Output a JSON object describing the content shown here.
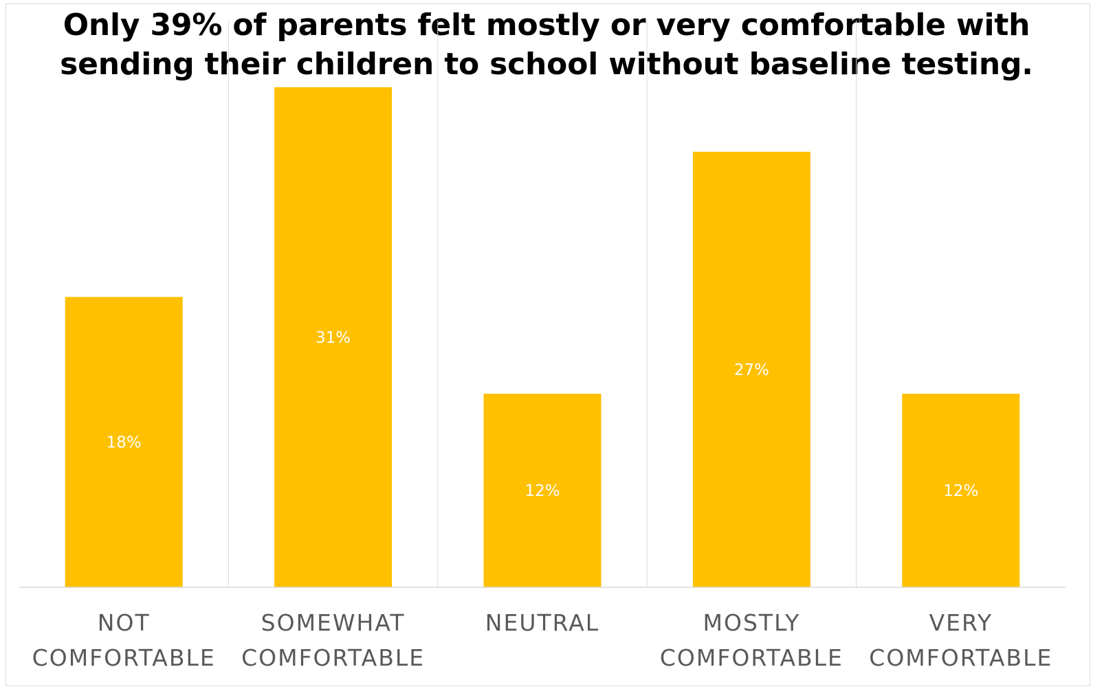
{
  "chart_data": {
    "type": "bar",
    "title": "Only 39% of parents felt mostly or very comfortable with sending their children to school without baseline testing.",
    "categories": [
      [
        "NOT",
        "COMFORTABLE"
      ],
      [
        "SOMEWHAT",
        "COMFORTABLE"
      ],
      [
        "NEUTRAL"
      ],
      [
        "MOSTLY",
        "COMFORTABLE"
      ],
      [
        "VERY",
        "COMFORTABLE"
      ]
    ],
    "values": [
      18,
      31,
      12,
      27,
      12
    ],
    "data_labels": [
      "18%",
      "31%",
      "12%",
      "27%",
      "12%"
    ],
    "ylim": [
      0,
      31
    ],
    "grid": "vertical-category-separators",
    "legend": "none",
    "colors": {
      "bar": "#FFC000",
      "data_label": "#FFFFFF",
      "category_label": "#595959",
      "gridline": "#D9D9D9"
    }
  }
}
